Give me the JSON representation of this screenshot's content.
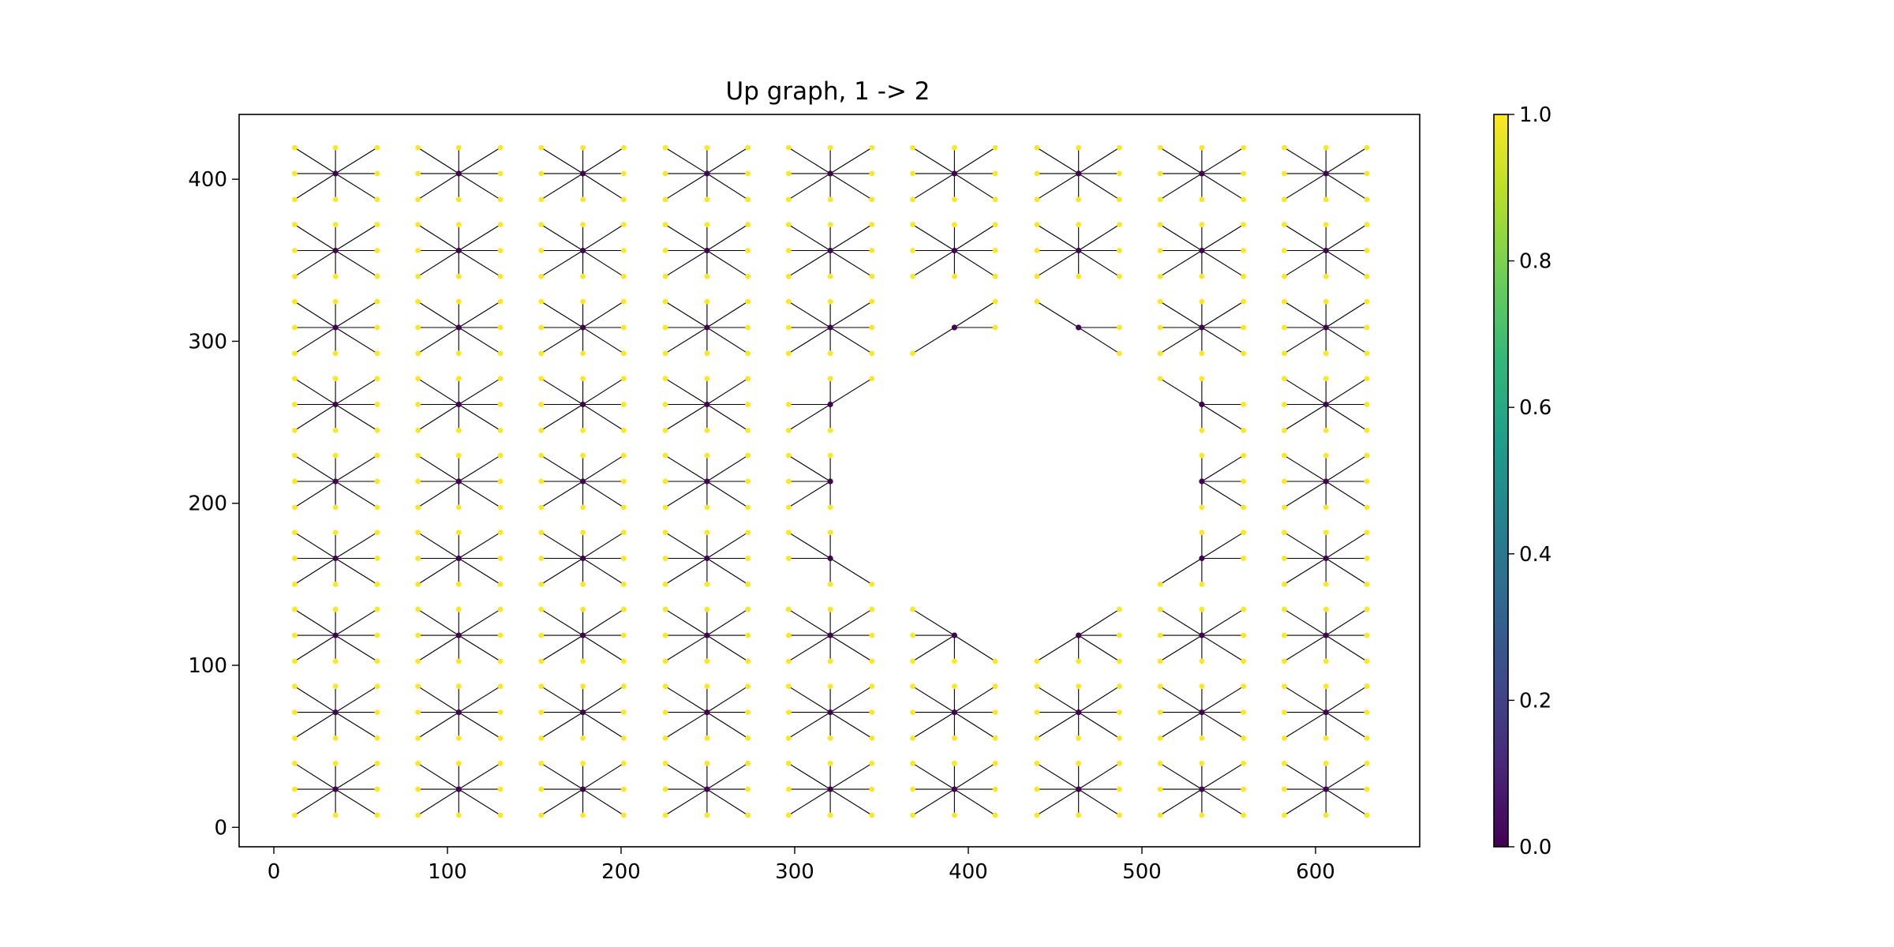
{
  "chart_data": {
    "type": "scatter",
    "title": "Up graph, 1 -> 2",
    "xlabel": "",
    "ylabel": "",
    "xlim": [
      -20,
      660
    ],
    "ylim": [
      -12,
      440
    ],
    "xticks": [
      0,
      100,
      200,
      300,
      400,
      500,
      600
    ],
    "yticks": [
      0,
      100,
      200,
      300,
      400
    ],
    "grid": false,
    "node_colormap": "viridis",
    "edge_color": "#000000",
    "colorbar": {
      "range": [
        0,
        1
      ],
      "ticks": [
        "0.0",
        "0.2",
        "0.4",
        "0.6",
        "0.8",
        "1.0"
      ],
      "colors": [
        "#440154",
        "#482878",
        "#3e4989",
        "#31688e",
        "#26828e",
        "#1f9e89",
        "#35b779",
        "#6ece58",
        "#b5de2b",
        "#fde725"
      ]
    },
    "coarse_nodes": {
      "value": 0.0,
      "x": [
        35.5,
        106.5,
        178,
        249.5,
        320.5,
        392,
        463.5,
        534.5,
        606
      ],
      "y": [
        23.5,
        71,
        118.5,
        166,
        213.5,
        261,
        308.5,
        356,
        403.5
      ]
    },
    "fine_nodes": {
      "value": 1.0,
      "x": [
        12,
        35.5,
        59.5,
        83,
        106.5,
        130.5,
        154,
        178,
        201.5,
        225.5,
        249.5,
        273,
        296.5,
        320.5,
        344.5,
        368,
        392,
        415.5,
        439.5,
        463.5,
        487,
        510.5,
        534.5,
        558.5,
        582,
        606,
        629.5
      ],
      "y": [
        7.5,
        23.5,
        39.5,
        55,
        71,
        87,
        102.5,
        118.5,
        134.5,
        150,
        166,
        182,
        197.5,
        213.5,
        229.5,
        245,
        261,
        277,
        292.5,
        308.5,
        324.5,
        340,
        356,
        372,
        387.5,
        403.5,
        419.5
      ]
    },
    "hole": {
      "removed_coarse_nodes": [
        [
          392,
          166
        ],
        [
          392,
          213.5
        ],
        [
          392,
          261
        ],
        [
          463.5,
          166
        ],
        [
          463.5,
          213.5
        ],
        [
          463.5,
          261
        ]
      ],
      "partial_coarse_nodes": [
        {
          "x": 392,
          "y": 308.5,
          "edges": [
            "E",
            "NE",
            "SW"
          ]
        },
        {
          "x": 463.5,
          "y": 308.5,
          "edges": [
            "E",
            "NW",
            "SE"
          ]
        },
        {
          "x": 320.5,
          "y": 261,
          "edges": [
            "N",
            "S",
            "W",
            "NE",
            "SW"
          ]
        },
        {
          "x": 534.5,
          "y": 261,
          "edges": [
            "N",
            "S",
            "E",
            "NW",
            "SE"
          ]
        },
        {
          "x": 320.5,
          "y": 213.5,
          "edges": [
            "N",
            "S",
            "W",
            "NW",
            "SW"
          ]
        },
        {
          "x": 534.5,
          "y": 213.5,
          "edges": [
            "N",
            "S",
            "E",
            "NE",
            "SE"
          ]
        },
        {
          "x": 320.5,
          "y": 166,
          "edges": [
            "N",
            "S",
            "W",
            "NW",
            "SE"
          ]
        },
        {
          "x": 534.5,
          "y": 166,
          "edges": [
            "N",
            "S",
            "E",
            "NE",
            "SW"
          ]
        },
        {
          "x": 392,
          "y": 118.5,
          "edges": [
            "S",
            "W",
            "NW",
            "SW",
            "SE"
          ]
        },
        {
          "x": 463.5,
          "y": 118.5,
          "edges": [
            "S",
            "E",
            "NE",
            "SW",
            "SE"
          ]
        }
      ]
    }
  }
}
